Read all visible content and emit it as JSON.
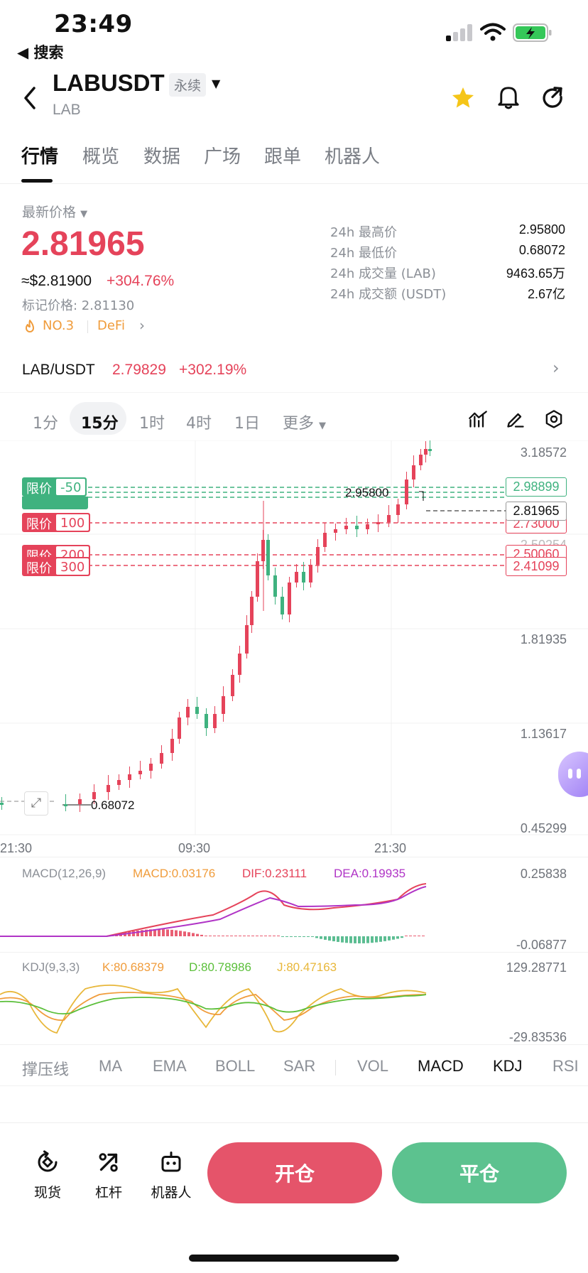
{
  "status_bar": {
    "time": "23:49",
    "back_app": "◀ 搜索"
  },
  "header": {
    "pair": "LABUSDT",
    "tag": "永续",
    "sub": "LAB"
  },
  "tabs": [
    {
      "label": "行情",
      "active": true
    },
    {
      "label": "概览"
    },
    {
      "label": "数据"
    },
    {
      "label": "广场"
    },
    {
      "label": "跟单"
    },
    {
      "label": "机器人"
    }
  ],
  "price": {
    "label": "最新价格",
    "last": "2.81965",
    "usd": "≈$2.81900",
    "change": "+304.76%",
    "mark": "标记价格: 2.81130",
    "rank": "NO.3",
    "sector": "DeFi"
  },
  "stats": [
    {
      "label": "24h 最高价",
      "value": "2.95800"
    },
    {
      "label": "24h 最低价",
      "value": "0.68072"
    },
    {
      "label": "24h 成交量 (LAB)",
      "value": "9463.65万"
    },
    {
      "label": "24h 成交额 (USDT)",
      "value": "2.67亿"
    }
  ],
  "spot": {
    "pair": "LAB/USDT",
    "price": "2.79829",
    "change": "+302.19%"
  },
  "intervals": [
    {
      "label": "1分"
    },
    {
      "label": "15分",
      "active": true
    },
    {
      "label": "1时"
    },
    {
      "label": "4时"
    },
    {
      "label": "1日"
    },
    {
      "label": "更多"
    }
  ],
  "chart_data": {
    "type": "candlestick",
    "interval": "15分",
    "y_axis_ticks": [
      "3.18572",
      "2.50254",
      "1.81935",
      "1.13617",
      "0.45299"
    ],
    "x_axis_ticks": [
      "21:30",
      "09:30",
      "21:30"
    ],
    "high_label": "2.95800",
    "low_label": "0.68072",
    "current_price": "2.81965",
    "order_lines": [
      {
        "side": "long",
        "label": "限价",
        "qty": "-50",
        "price": "2.98899"
      },
      {
        "side": "short",
        "label": "限价",
        "qty": "100",
        "price": "2.73000"
      },
      {
        "side": "short",
        "label": "限价",
        "qty": "200",
        "price": "2.50060"
      },
      {
        "side": "short",
        "label": "限价",
        "qty": "300",
        "price": "2.41099"
      }
    ],
    "macd": {
      "params": "MACD(12,26,9)",
      "macd": "MACD:0.03176",
      "dif": "DIF:0.23111",
      "dea": "DEA:0.19935",
      "y_top": "0.25838",
      "y_bottom": "-0.06877"
    },
    "kdj": {
      "params": "KDJ(9,3,3)",
      "k": "K:80.68379",
      "d": "D:80.78986",
      "j": "J:80.47163",
      "y_top": "129.28771",
      "y_bottom": "-29.83536"
    }
  },
  "indicator_tabs": [
    {
      "label": "撑压线"
    },
    {
      "label": "MA"
    },
    {
      "label": "EMA"
    },
    {
      "label": "BOLL"
    },
    {
      "label": "SAR"
    },
    {
      "label": "VOL"
    },
    {
      "label": "MACD",
      "active": true
    },
    {
      "label": "KDJ",
      "active": true
    },
    {
      "label": "RSI"
    }
  ],
  "bottom_nav": [
    {
      "label": "现货"
    },
    {
      "label": "杠杆"
    },
    {
      "label": "机器人"
    }
  ],
  "actions": {
    "open": "开仓",
    "close": "平仓"
  },
  "colors": {
    "up": "#3fb27f",
    "down": "#e5435a",
    "accent": "#f5c518"
  }
}
